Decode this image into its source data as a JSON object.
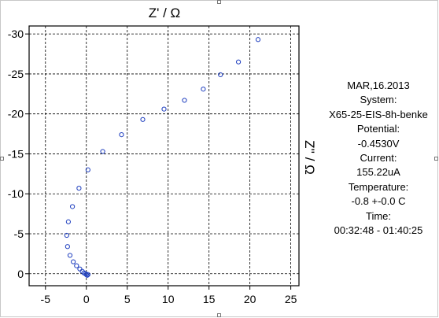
{
  "chart_data": {
    "type": "scatter",
    "title": "Z' / Ω",
    "ylabel": "Z'' / Ω",
    "xlim": [
      -7,
      26
    ],
    "ylim": [
      1.5,
      -31
    ],
    "x_ticks": [
      -5,
      0,
      5,
      10,
      15,
      20,
      25
    ],
    "y_ticks": [
      -30,
      -25,
      -20,
      -15,
      -10,
      -5,
      0
    ],
    "grid": true,
    "marker_color": "#1f3fbf",
    "series": [
      {
        "x": [
          21.0,
          18.6,
          16.4,
          14.3,
          12.0,
          9.5,
          6.9,
          4.3,
          2.0,
          0.2,
          -0.9,
          -1.7,
          -2.2,
          -2.4,
          -2.3,
          -2.0,
          -1.6,
          -1.2,
          -0.8,
          -0.5,
          -0.3,
          -0.1,
          0.0,
          0.1,
          0.2
        ],
        "y": [
          -29.3,
          -26.5,
          -24.9,
          -23.1,
          -21.7,
          -20.6,
          -19.3,
          -17.4,
          -15.3,
          -13.0,
          -10.7,
          -8.4,
          -6.5,
          -4.8,
          -3.4,
          -2.3,
          -1.5,
          -1.0,
          -0.6,
          -0.3,
          -0.1,
          0.0,
          0.1,
          0.2,
          0.1
        ]
      }
    ]
  },
  "info_panel": {
    "date": "MAR,16.2013",
    "system_label": "System:",
    "system_value": "X65-25-EIS-8h-benke",
    "potential_label": "Potential:",
    "potential_value": "-0.4530V",
    "current_label": "Current:",
    "current_value": "155.22uA",
    "temperature_label": "Temperature:",
    "temperature_value": "-0.8  +-0.0 C",
    "time_label": "Time:",
    "time_value": "00:32:48 - 01:40:25"
  }
}
